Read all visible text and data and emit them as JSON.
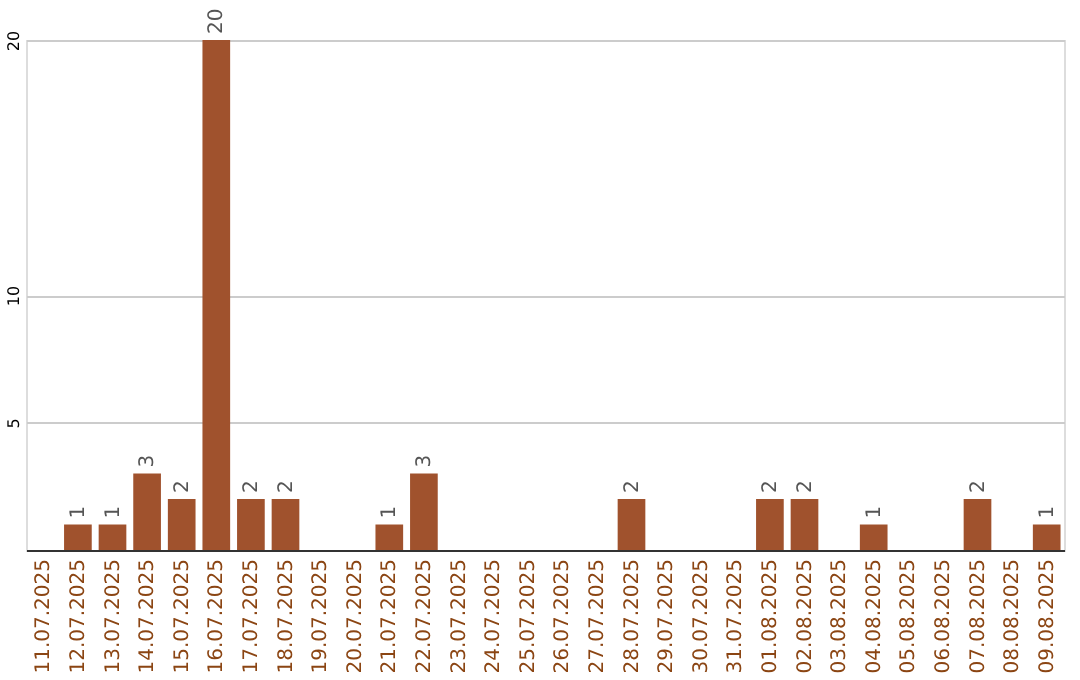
{
  "chart_data": {
    "type": "bar",
    "categories": [
      "11.07.2025",
      "12.07.2025",
      "13.07.2025",
      "14.07.2025",
      "15.07.2025",
      "16.07.2025",
      "17.07.2025",
      "18.07.2025",
      "19.07.2025",
      "20.07.2025",
      "21.07.2025",
      "22.07.2025",
      "23.07.2025",
      "24.07.2025",
      "25.07.2025",
      "26.07.2025",
      "27.07.2025",
      "28.07.2025",
      "29.07.2025",
      "30.07.2025",
      "31.07.2025",
      "01.08.2025",
      "02.08.2025",
      "03.08.2025",
      "04.08.2025",
      "05.08.2025",
      "06.08.2025",
      "07.08.2025",
      "08.08.2025",
      "09.08.2025"
    ],
    "values": [
      0,
      1,
      1,
      3,
      2,
      20,
      2,
      2,
      0,
      0,
      1,
      3,
      0,
      0,
      0,
      0,
      0,
      2,
      0,
      0,
      0,
      2,
      2,
      0,
      1,
      0,
      0,
      2,
      0,
      1
    ],
    "value_labels": [
      null,
      "1",
      "1",
      "3",
      "2",
      "20",
      "2",
      "2",
      null,
      null,
      "1",
      "3",
      null,
      null,
      null,
      null,
      null,
      "2",
      null,
      null,
      null,
      "2",
      "2",
      null,
      "1",
      null,
      null,
      "2",
      null,
      "1"
    ],
    "color": "#a0522d",
    "ylim": [
      0,
      20
    ],
    "yticks": [
      5,
      10,
      20
    ],
    "grid": "y"
  }
}
